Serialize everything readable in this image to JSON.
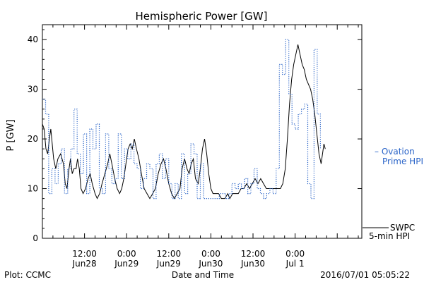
{
  "chart_data": {
    "type": "line",
    "title": "Hemispheric Power [GW]",
    "ylabel": "P [GW]",
    "xlabel": "Date and Time",
    "ylim": [
      0,
      43
    ],
    "yticks": [
      0,
      10,
      20,
      30,
      40
    ],
    "xlim": [
      0,
      91
    ],
    "xticks": [
      {
        "x": 12,
        "line1": "12:00",
        "line2": "Jun28"
      },
      {
        "x": 24,
        "line1": "0:00",
        "line2": "Jun29"
      },
      {
        "x": 36,
        "line1": "12:00",
        "line2": "Jun29"
      },
      {
        "x": 48,
        "line1": "0:00",
        "line2": "Jun30"
      },
      {
        "x": 60,
        "line1": "12:00",
        "line2": "Jun30"
      },
      {
        "x": 72,
        "line1": "0:00",
        "line2": "Jul 1"
      }
    ],
    "grid": false,
    "series": [
      {
        "name": "SWPC 5-min HPI",
        "color": "#000000",
        "style": "solid",
        "points": [
          [
            0.0,
            23
          ],
          [
            0.5,
            22
          ],
          [
            1.0,
            18
          ],
          [
            1.5,
            17
          ],
          [
            2.0,
            20
          ],
          [
            2.4,
            22
          ],
          [
            2.8,
            19
          ],
          [
            3.2,
            16
          ],
          [
            3.8,
            14
          ],
          [
            4.4,
            16
          ],
          [
            5.2,
            17
          ],
          [
            6.0,
            15
          ],
          [
            6.5,
            11
          ],
          [
            7.0,
            10
          ],
          [
            7.6,
            14
          ],
          [
            8.0,
            16
          ],
          [
            8.5,
            13
          ],
          [
            9.0,
            14
          ],
          [
            9.6,
            14
          ],
          [
            10.0,
            16
          ],
          [
            10.5,
            14
          ],
          [
            11.0,
            10
          ],
          [
            11.6,
            9
          ],
          [
            12.3,
            10
          ],
          [
            13.0,
            12
          ],
          [
            13.6,
            13
          ],
          [
            14.2,
            11
          ],
          [
            15.0,
            9
          ],
          [
            15.6,
            8
          ],
          [
            16.3,
            9
          ],
          [
            17.0,
            11
          ],
          [
            17.8,
            13
          ],
          [
            18.6,
            15
          ],
          [
            19.2,
            17
          ],
          [
            19.8,
            15
          ],
          [
            20.6,
            12
          ],
          [
            21.3,
            10
          ],
          [
            22.0,
            9
          ],
          [
            22.6,
            10
          ],
          [
            23.2,
            12
          ],
          [
            23.8,
            15
          ],
          [
            24.4,
            18
          ],
          [
            25.0,
            19
          ],
          [
            25.6,
            18
          ],
          [
            26.2,
            20
          ],
          [
            26.8,
            18
          ],
          [
            27.5,
            16
          ],
          [
            28.2,
            13
          ],
          [
            29.0,
            10
          ],
          [
            29.8,
            9
          ],
          [
            30.6,
            8
          ],
          [
            31.4,
            9
          ],
          [
            32.2,
            10
          ],
          [
            33.0,
            13
          ],
          [
            33.8,
            15
          ],
          [
            34.5,
            16
          ],
          [
            35.2,
            14
          ],
          [
            36.0,
            11
          ],
          [
            36.8,
            9
          ],
          [
            37.6,
            8
          ],
          [
            38.4,
            9
          ],
          [
            39.2,
            10
          ],
          [
            39.8,
            14
          ],
          [
            40.5,
            16
          ],
          [
            41.2,
            14
          ],
          [
            41.8,
            13
          ],
          [
            42.4,
            15
          ],
          [
            43.0,
            16
          ],
          [
            43.6,
            12
          ],
          [
            44.4,
            11
          ],
          [
            45.0,
            14
          ],
          [
            45.6,
            18
          ],
          [
            46.2,
            20
          ],
          [
            46.8,
            17
          ],
          [
            47.4,
            13
          ],
          [
            48.0,
            10
          ],
          [
            48.6,
            9
          ],
          [
            49.4,
            9
          ],
          [
            50.2,
            9
          ],
          [
            51.0,
            8
          ],
          [
            52.0,
            8
          ],
          [
            52.8,
            9
          ],
          [
            53.4,
            8
          ],
          [
            54.2,
            9
          ],
          [
            55.0,
            9
          ],
          [
            55.8,
            9
          ],
          [
            56.6,
            10
          ],
          [
            57.4,
            10
          ],
          [
            58.2,
            11
          ],
          [
            59.0,
            10
          ],
          [
            59.8,
            11
          ],
          [
            60.6,
            12
          ],
          [
            61.4,
            11
          ],
          [
            62.2,
            12
          ],
          [
            63.0,
            11
          ],
          [
            63.8,
            10
          ],
          [
            64.6,
            10
          ],
          [
            65.4,
            10
          ],
          [
            66.2,
            10
          ],
          [
            67.0,
            10
          ],
          [
            67.8,
            10
          ],
          [
            68.5,
            11
          ],
          [
            69.2,
            14
          ],
          [
            69.8,
            20
          ],
          [
            70.4,
            27
          ],
          [
            71.0,
            32
          ],
          [
            71.6,
            35
          ],
          [
            72.2,
            37
          ],
          [
            72.8,
            39
          ],
          [
            73.4,
            37
          ],
          [
            74.0,
            35
          ],
          [
            74.6,
            34
          ],
          [
            75.2,
            32
          ],
          [
            75.8,
            31
          ],
          [
            76.4,
            30
          ],
          [
            77.0,
            28
          ],
          [
            77.6,
            25
          ],
          [
            78.2,
            21
          ],
          [
            78.8,
            17
          ],
          [
            79.4,
            15
          ],
          [
            79.8,
            17
          ],
          [
            80.2,
            19
          ],
          [
            80.6,
            18
          ]
        ]
      },
      {
        "name": "Ovation Prime HPI",
        "color": "#2a64c8",
        "style": "dotted",
        "points": [
          [
            0.0,
            28
          ],
          [
            0.9,
            25
          ],
          [
            1.8,
            9
          ],
          [
            2.7,
            14
          ],
          [
            3.6,
            11
          ],
          [
            4.5,
            15
          ],
          [
            5.4,
            18
          ],
          [
            6.3,
            9
          ],
          [
            7.2,
            14
          ],
          [
            8.1,
            18
          ],
          [
            9.0,
            26
          ],
          [
            9.9,
            17
          ],
          [
            10.8,
            13
          ],
          [
            11.7,
            21
          ],
          [
            12.6,
            9
          ],
          [
            13.5,
            22
          ],
          [
            14.4,
            18
          ],
          [
            15.3,
            23
          ],
          [
            16.2,
            10
          ],
          [
            17.1,
            9
          ],
          [
            18.0,
            21
          ],
          [
            18.9,
            14
          ],
          [
            19.8,
            11
          ],
          [
            20.7,
            12
          ],
          [
            21.6,
            21
          ],
          [
            22.5,
            12
          ],
          [
            23.4,
            18
          ],
          [
            24.3,
            16
          ],
          [
            25.2,
            19
          ],
          [
            26.1,
            15
          ],
          [
            27.0,
            14
          ],
          [
            27.9,
            10
          ],
          [
            28.8,
            12
          ],
          [
            29.7,
            15
          ],
          [
            30.6,
            14
          ],
          [
            31.5,
            8
          ],
          [
            32.4,
            15
          ],
          [
            33.3,
            17
          ],
          [
            34.2,
            12
          ],
          [
            35.1,
            16
          ],
          [
            36.0,
            11
          ],
          [
            36.9,
            8
          ],
          [
            37.8,
            11
          ],
          [
            38.7,
            8
          ],
          [
            39.6,
            17
          ],
          [
            40.5,
            9
          ],
          [
            41.4,
            13
          ],
          [
            42.3,
            19
          ],
          [
            43.2,
            17
          ],
          [
            44.1,
            8
          ],
          [
            45.0,
            15
          ],
          [
            45.9,
            8
          ],
          [
            46.8,
            8
          ],
          [
            47.7,
            8
          ],
          [
            48.6,
            8
          ],
          [
            49.5,
            8
          ],
          [
            50.4,
            9
          ],
          [
            51.3,
            9
          ],
          [
            52.2,
            8
          ],
          [
            53.1,
            9
          ],
          [
            54.0,
            11
          ],
          [
            54.9,
            10
          ],
          [
            55.8,
            11
          ],
          [
            56.7,
            10
          ],
          [
            57.6,
            12
          ],
          [
            58.5,
            9
          ],
          [
            59.4,
            11
          ],
          [
            60.3,
            14
          ],
          [
            61.2,
            10
          ],
          [
            62.1,
            9
          ],
          [
            63.0,
            8
          ],
          [
            63.9,
            9
          ],
          [
            64.8,
            10
          ],
          [
            65.7,
            9
          ],
          [
            66.6,
            14
          ],
          [
            67.5,
            35
          ],
          [
            68.4,
            33
          ],
          [
            69.3,
            40
          ],
          [
            70.2,
            29
          ],
          [
            71.1,
            23
          ],
          [
            72.0,
            22
          ],
          [
            72.9,
            25
          ],
          [
            73.8,
            26
          ],
          [
            74.7,
            27
          ],
          [
            75.6,
            11
          ],
          [
            76.5,
            8
          ],
          [
            77.4,
            38
          ],
          [
            78.3,
            25
          ],
          [
            79.2,
            18
          ]
        ]
      }
    ]
  },
  "legend": {
    "ovation_line1": "– Ovation",
    "ovation_line2": "Prime HPI",
    "swpc_line1": "SWPC",
    "swpc_line2": "5-min HPI"
  },
  "footer": {
    "plot_credit": "Plot: CCMC",
    "timestamp": "2016/07/01 05:05:22"
  },
  "colors": {
    "swpc": "#000000",
    "ovation": "#2a64c8",
    "axis": "#000000"
  }
}
